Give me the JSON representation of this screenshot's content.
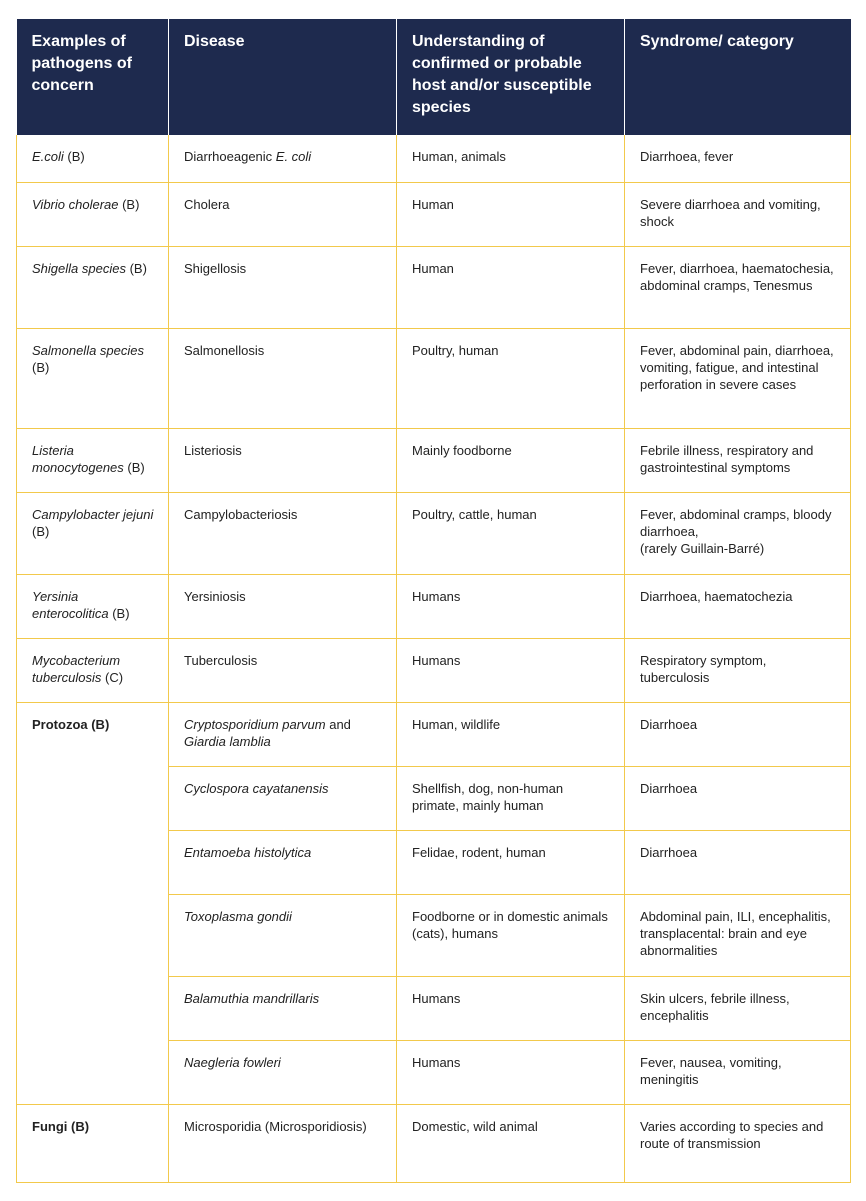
{
  "headers": [
    "Examples of pathogens of concern",
    "Disease",
    "Understanding of confirmed or probable host and/or susceptible species",
    "Syndrome/ category"
  ],
  "rows": [
    {
      "p_it": "E.coli",
      "p_rest": " (B)",
      "d_pre": "Diarrhoeagenic ",
      "d_it": "E. coli",
      "d_post": "",
      "h": "Human, animals",
      "s": "Diarrhoea, fever"
    },
    {
      "p_it": "Vibrio cholerae",
      "p_rest": " (B)",
      "d_pre": "Cholera",
      "d_it": "",
      "d_post": "",
      "h": "Human",
      "s": "Severe diarrhoea and vomiting, shock"
    },
    {
      "p_it": "Shigella species",
      "p_rest": " (B)",
      "d_pre": "Shigellosis",
      "d_it": "",
      "d_post": "",
      "h": "Human",
      "s": "Fever, diarrhoea, haematochesia, abdominal cramps, Tenesmus"
    },
    {
      "p_it": "Salmonella species",
      "p_rest": " (B)",
      "d_pre": "Salmonellosis",
      "d_it": "",
      "d_post": "",
      "h": "Poultry, human",
      "s": "Fever, abdominal pain, diarrhoea, vomiting, fatigue, and intestinal perforation in severe cases"
    },
    {
      "p_it": "Listeria monocytogenes",
      "p_rest": " (B)",
      "d_pre": "Listeriosis",
      "d_it": "",
      "d_post": "",
      "h": "Mainly foodborne",
      "s": "Febrile illness, respiratory and gastrointestinal symptoms"
    },
    {
      "p_it": "Campylobacter jejuni",
      "p_rest": " (B)",
      "d_pre": "Campylobacteriosis",
      "d_it": "",
      "d_post": "",
      "h": "Poultry, cattle, human",
      "s": "Fever, abdominal cramps, bloody diarrhoea,\n(rarely Guillain-Barré)"
    },
    {
      "p_it": "Yersinia enterocolitica",
      "p_rest": " (B)",
      "d_pre": "Yersiniosis",
      "d_it": "",
      "d_post": "",
      "h": "Humans",
      "s": "Diarrhoea, haematochezia"
    },
    {
      "p_it": "Mycobacterium tuberculosis",
      "p_rest": " (C)",
      "d_pre": "Tuberculosis",
      "d_it": "",
      "d_post": "",
      "h": "Humans",
      "s": "Respiratory symptom, tuberculosis"
    }
  ],
  "protozoa": {
    "label": "Protozoa (B)",
    "rows": [
      {
        "d_it": "Cryptosporidium parvum",
        "d_mid": " and ",
        "d_it2": "Giardia lamblia",
        "h": "Human, wildlife",
        "s": "Diarrhoea"
      },
      {
        "d_it": "Cyclospora cayatanensis",
        "d_mid": "",
        "d_it2": "",
        "h": "Shellfish, dog, non-human primate, mainly human",
        "s": "Diarrhoea"
      },
      {
        "d_it": "Entamoeba histolytica",
        "d_mid": "",
        "d_it2": "",
        "h": "Felidae, rodent, human",
        "s": "Diarrhoea"
      },
      {
        "d_it": "Toxoplasma gondii",
        "d_mid": "",
        "d_it2": "",
        "h": "Foodborne or in domestic animals (cats), humans",
        "s": "Abdominal pain, ILI, encephalitis, transplacental: brain and eye abnormalities"
      },
      {
        "d_it": "Balamuthia mandrillaris",
        "d_mid": "",
        "d_it2": "",
        "h": "Humans",
        "s": "Skin ulcers, febrile illness, encephalitis"
      },
      {
        "d_it": "Naegleria fowleri",
        "d_mid": "",
        "d_it2": "",
        "h": "Humans",
        "s": "Fever, nausea, vomiting, meningitis"
      }
    ]
  },
  "fungi": {
    "label": "Fungi (B)",
    "d": "Microsporidia (Microsporidiosis)",
    "h": "Domestic, wild animal",
    "s": "Varies according to species and route of transmission"
  },
  "colors": {
    "header_bg": "#1e2a4e",
    "rule": "#f2c94c"
  }
}
